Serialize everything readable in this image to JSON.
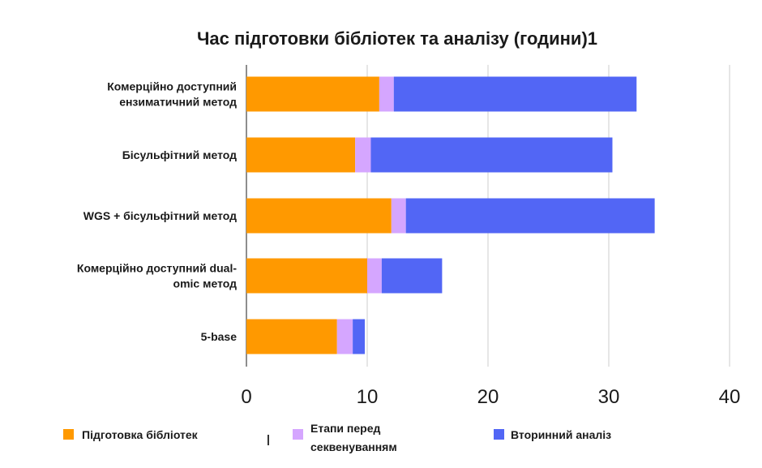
{
  "chart_data": {
    "type": "bar",
    "orientation": "horizontal",
    "stacked": true,
    "title": "Час підготовки бібліотек та аналізу (години)1",
    "categories": [
      [
        "Комерційно доступний",
        "ензиматичний метод"
      ],
      [
        "Бісульфітний метод"
      ],
      [
        "WGS + бісульфітний метод"
      ],
      [
        "Комерційно доступний dual-",
        "omic метод"
      ],
      [
        "5-base"
      ]
    ],
    "series": [
      {
        "name": "Підготовка бібліотек",
        "color": "#FF9900",
        "values": [
          11,
          9,
          12,
          10,
          7.5
        ]
      },
      {
        "name_lines": [
          "Етапи перед",
          "секвенуванням"
        ],
        "color": "#D5A6FF",
        "values": [
          1.2,
          1.3,
          1.2,
          1.2,
          1.3
        ]
      },
      {
        "name": "Вторинний аналіз",
        "color": "#5266F5",
        "values": [
          20.1,
          20.0,
          20.6,
          5.0,
          1.0
        ]
      }
    ],
    "xlim": [
      0,
      40
    ],
    "xticks": [
      "0",
      "10",
      "20",
      "30",
      "40"
    ],
    "grid": true,
    "legend_position": "bottom",
    "legend_separator": "|"
  }
}
